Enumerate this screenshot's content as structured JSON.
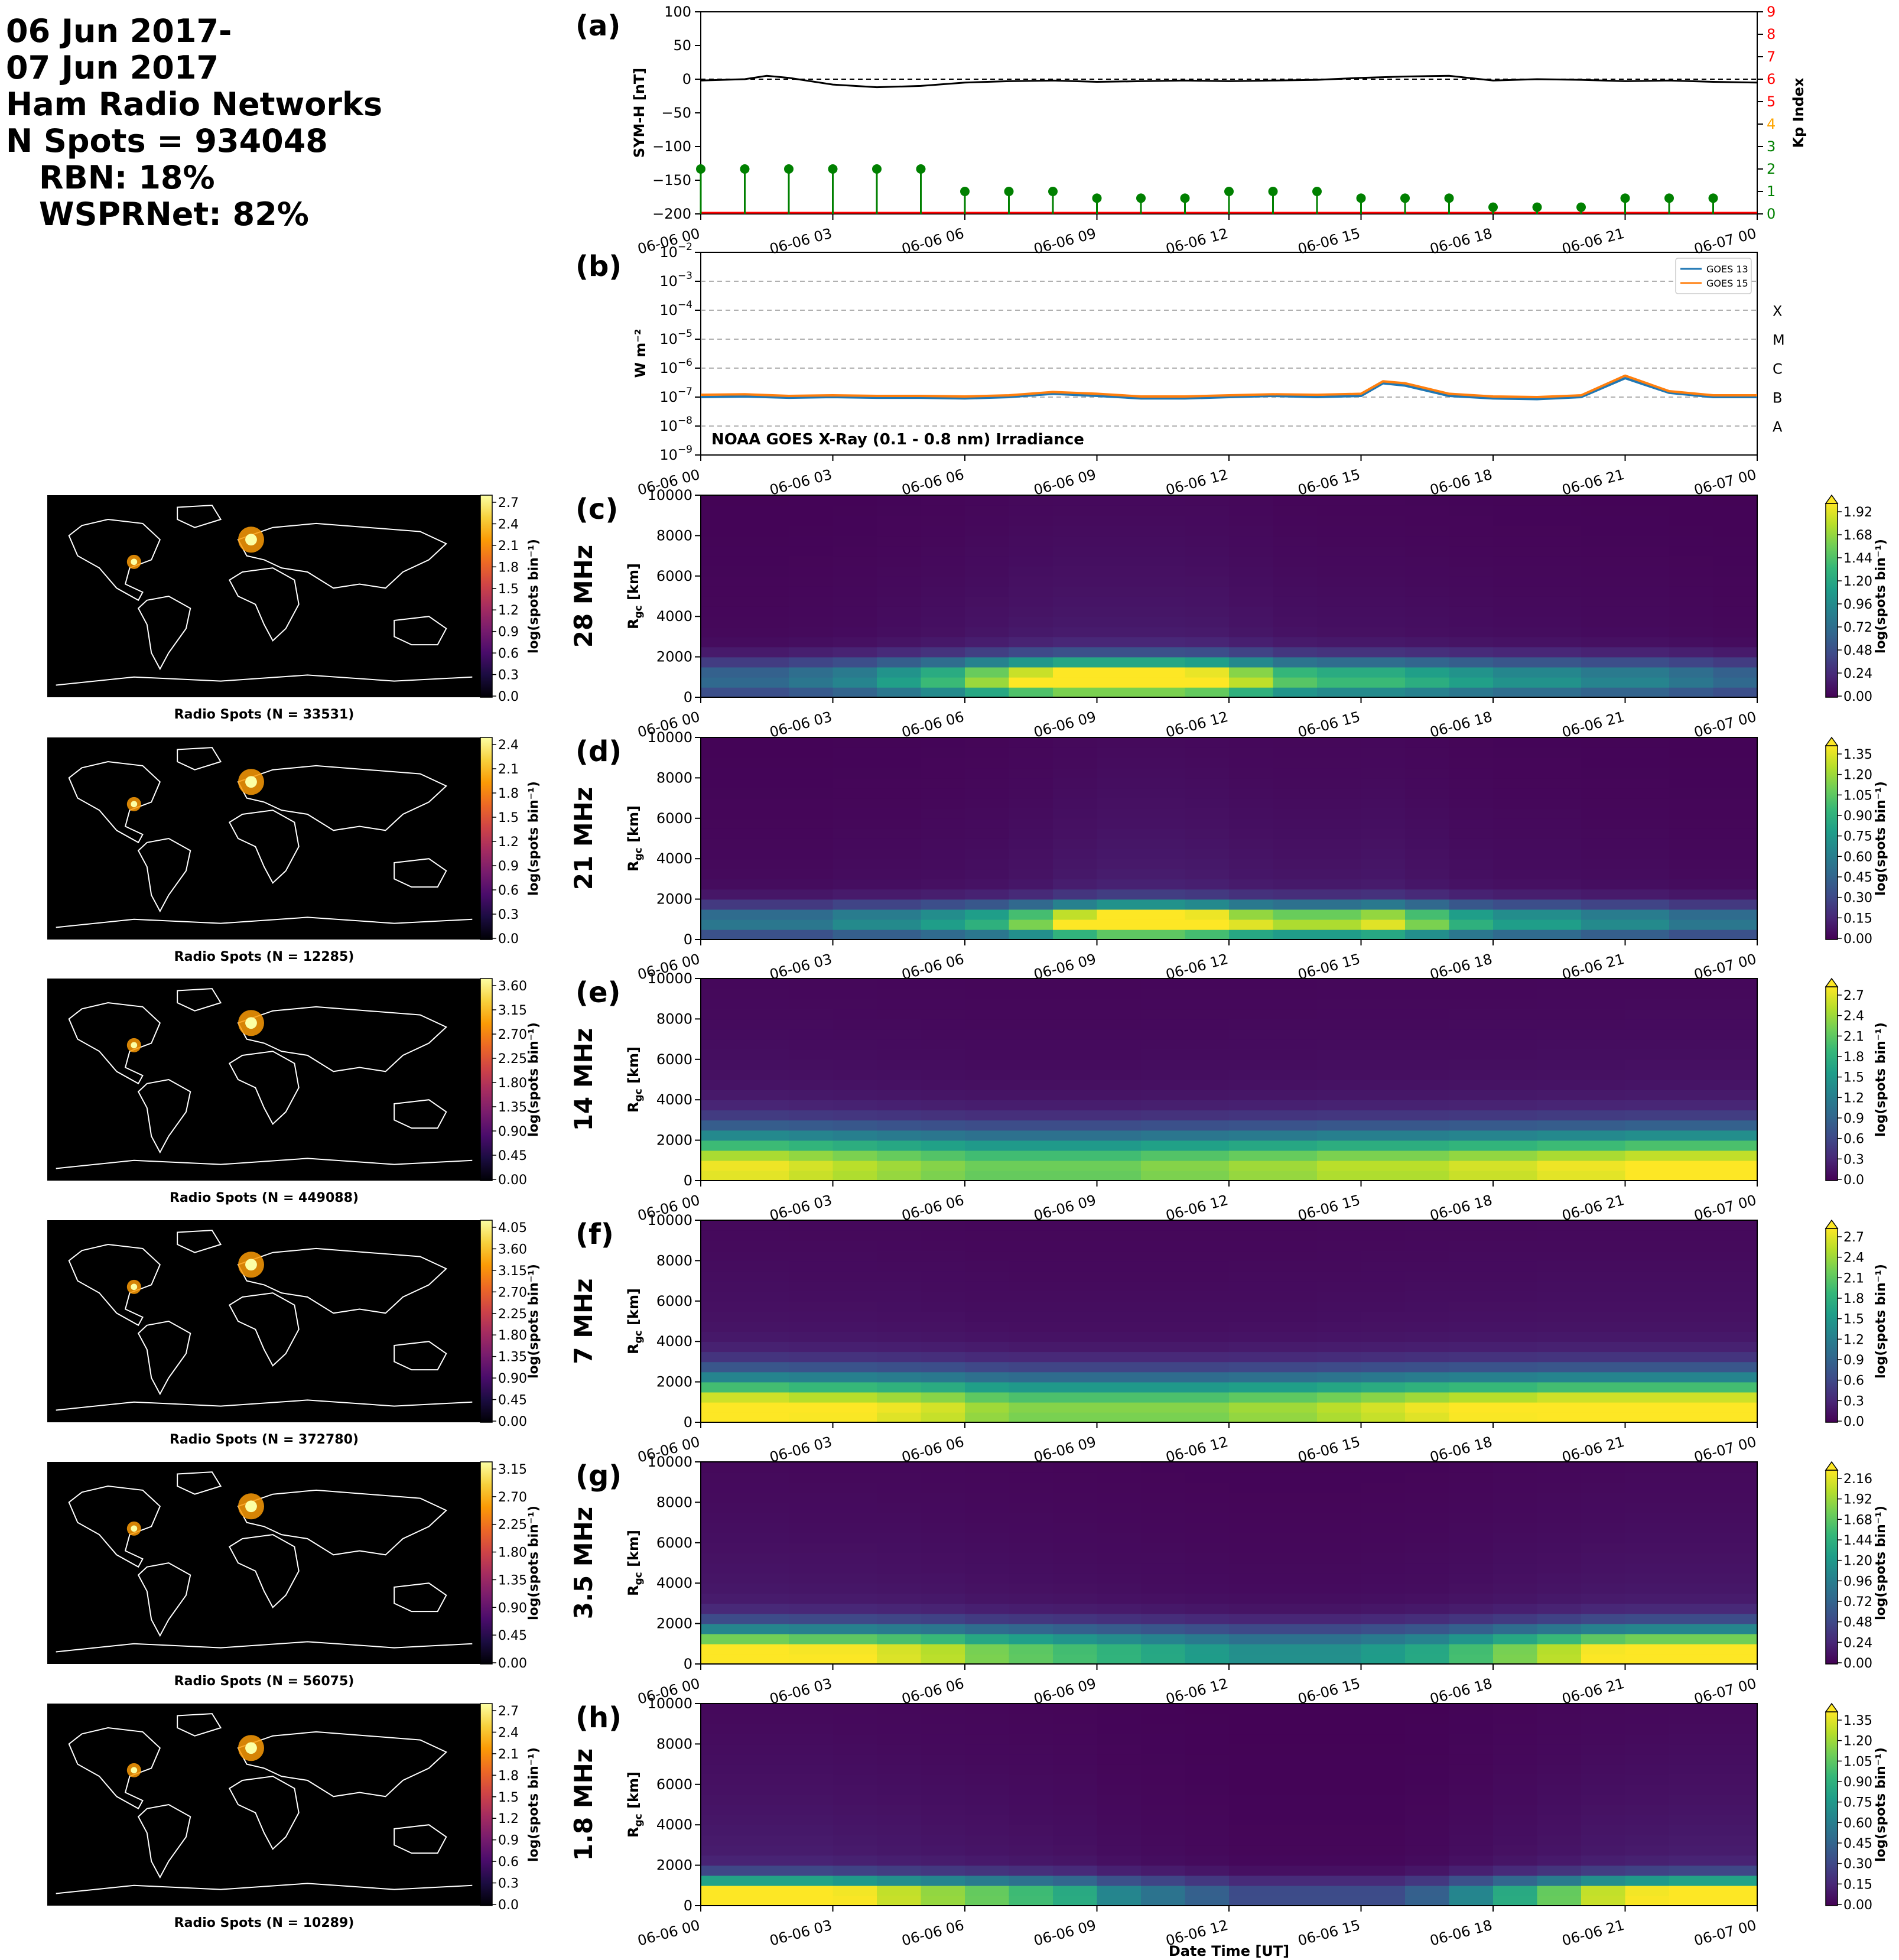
{
  "header": {
    "date_line_1": "06 Jun 2017-",
    "date_line_2": "07 Jun 2017",
    "networks": "Ham Radio Networks",
    "n_spots": "N Spots = 934048",
    "rbn": "RBN: 18%",
    "wsprnet": "WSPRNet: 82%"
  },
  "colors": {
    "sym_h": "#000000",
    "kp_stem": "#008000",
    "kp_low": "#008000",
    "kp_mid": "#ffa500",
    "kp_high": "#ff0000",
    "goes13": "#1f77b4",
    "goes15": "#ff7f0e",
    "map_bg": "#000000",
    "coast": "#ffffff"
  },
  "x_axis": {
    "ticks": [
      "06-06 00",
      "06-06 03",
      "06-06 06",
      "06-06 09",
      "06-06 12",
      "06-06 15",
      "06-06 18",
      "06-06 21",
      "06-07 00"
    ],
    "label": "Date Time [UT]"
  },
  "chart_data": [
    {
      "panel": "(a)",
      "type": "line",
      "ylabel": "SYM-H [nT]",
      "ylim": [
        -200,
        100
      ],
      "yticks": [
        "100",
        "50",
        "0",
        "−50",
        "−100",
        "−150",
        "−200"
      ],
      "x_hours": [
        0,
        1,
        1.5,
        2,
        3,
        4,
        5,
        6,
        7,
        8,
        9,
        10,
        11,
        12,
        13,
        14,
        15,
        16,
        17,
        18,
        19,
        20,
        21,
        22,
        23,
        24
      ],
      "series": [
        {
          "name": "SYM-H",
          "values": [
            -2,
            0,
            5,
            2,
            -8,
            -12,
            -10,
            -5,
            -3,
            -2,
            -4,
            -3,
            -2,
            -3,
            -2,
            -1,
            2,
            4,
            5,
            -2,
            0,
            -1,
            -3,
            -2,
            -4,
            -5
          ]
        }
      ],
      "secondary_axis": {
        "ylabel": "Kp Index",
        "ylim": [
          0,
          9
        ],
        "yticks": [
          "0",
          "1",
          "2",
          "3",
          "4",
          "5",
          "6",
          "7",
          "8",
          "9"
        ],
        "kp_x_hours": [
          0,
          1,
          2,
          3,
          4,
          5,
          6,
          7,
          8,
          9,
          10,
          11,
          12,
          13,
          14,
          15,
          16,
          17,
          18,
          19,
          20,
          21,
          22,
          23
        ],
        "kp_values": [
          2,
          2,
          2,
          2,
          2,
          2,
          1,
          1,
          1,
          0.7,
          0.7,
          0.7,
          1,
          1,
          1,
          0.7,
          0.7,
          0.7,
          0.3,
          0.3,
          0.3,
          0.7,
          0.7,
          0.7
        ]
      }
    },
    {
      "panel": "(b)",
      "type": "line",
      "ylabel": "W m⁻²",
      "log_scale": true,
      "ylim_exp": [
        -9,
        -2
      ],
      "ytick_exps": [
        -2,
        -3,
        -4,
        -5,
        -6,
        -7,
        -8,
        -9
      ],
      "flare_classes": [
        "X",
        "M",
        "C",
        "B",
        "A"
      ],
      "annotation": "NOAA GOES X-Ray (0.1 - 0.8 nm) Irradiance",
      "x_hours": [
        0,
        1,
        2,
        3,
        4,
        5,
        6,
        7,
        8,
        9,
        10,
        11,
        12,
        13,
        14,
        15,
        15.5,
        16,
        17,
        18,
        19,
        20,
        21,
        22,
        23,
        24
      ],
      "series": [
        {
          "name": "GOES 13",
          "values": [
            1e-07,
            1.05e-07,
            9.5e-08,
            1e-07,
            9.5e-08,
            9.5e-08,
            9e-08,
            1e-07,
            1.3e-07,
            1.1e-07,
            9e-08,
            9e-08,
            1e-07,
            1.1e-07,
            1e-07,
            1.1e-07,
            3e-07,
            2.5e-07,
            1.1e-07,
            9e-08,
            8.5e-08,
            1e-07,
            4.5e-07,
            1.4e-07,
            1e-07,
            1e-07
          ]
        },
        {
          "name": "GOES 15",
          "values": [
            1.2e-07,
            1.25e-07,
            1.1e-07,
            1.15e-07,
            1.1e-07,
            1.1e-07,
            1.05e-07,
            1.15e-07,
            1.5e-07,
            1.3e-07,
            1.05e-07,
            1.05e-07,
            1.15e-07,
            1.25e-07,
            1.2e-07,
            1.3e-07,
            3.5e-07,
            3e-07,
            1.3e-07,
            1.05e-07,
            1e-07,
            1.15e-07,
            5.5e-07,
            1.6e-07,
            1.15e-07,
            1.15e-07
          ]
        }
      ]
    },
    {
      "panel": "(c)",
      "type": "heatmap",
      "band": "28 MHz",
      "map_caption": "Radio Spots (N = 33531)",
      "ylabel": "R_gc [km]",
      "ylim": [
        0,
        10000
      ],
      "yticks": [
        "0",
        "2000",
        "4000",
        "6000",
        "8000",
        "10000"
      ],
      "map_cbar_ticks": [
        "0.0",
        "0.3",
        "0.6",
        "0.9",
        "1.2",
        "1.5",
        "1.8",
        "2.1",
        "2.4",
        "2.7"
      ],
      "cbar_ticks": [
        "0.00",
        "0.24",
        "0.48",
        "0.72",
        "0.96",
        "1.20",
        "1.44",
        "1.68",
        "1.92"
      ],
      "cbar_label": "log(spots bin⁻¹)",
      "intensity_by_hour": [
        0.6,
        0.6,
        0.7,
        0.8,
        1.0,
        1.2,
        1.5,
        1.8,
        2.0,
        2.0,
        2.0,
        1.9,
        1.6,
        1.3,
        1.2,
        1.2,
        1.1,
        1.0,
        0.9,
        0.9,
        0.8,
        0.8,
        0.7,
        0.6
      ],
      "peak_km": 900,
      "spread_km": 700
    },
    {
      "panel": "(d)",
      "type": "heatmap",
      "band": "21 MHz",
      "map_caption": "Radio Spots (N = 12285)",
      "ylabel": "R_gc [km]",
      "ylim": [
        0,
        10000
      ],
      "yticks": [
        "0",
        "2000",
        "4000",
        "6000",
        "8000",
        "10000"
      ],
      "map_cbar_ticks": [
        "0.0",
        "0.3",
        "0.6",
        "0.9",
        "1.2",
        "1.5",
        "1.8",
        "2.1",
        "2.4"
      ],
      "cbar_ticks": [
        "0.00",
        "0.15",
        "0.30",
        "0.45",
        "0.60",
        "0.75",
        "0.90",
        "1.05",
        "1.20",
        "1.35"
      ],
      "cbar_label": "log(spots bin⁻¹)",
      "intensity_by_hour": [
        0.5,
        0.5,
        0.5,
        0.6,
        0.6,
        0.7,
        0.8,
        1.0,
        1.3,
        1.5,
        1.5,
        1.4,
        1.2,
        1.1,
        1.1,
        1.2,
        1.0,
        0.8,
        0.7,
        0.7,
        0.6,
        0.6,
        0.5,
        0.5
      ],
      "peak_km": 900,
      "spread_km": 600
    },
    {
      "panel": "(e)",
      "type": "heatmap",
      "band": "14 MHz",
      "map_caption": "Radio Spots (N = 449088)",
      "ylabel": "R_gc [km]",
      "ylim": [
        0,
        10000
      ],
      "yticks": [
        "0",
        "2000",
        "4000",
        "6000",
        "8000",
        "10000"
      ],
      "map_cbar_ticks": [
        "0.00",
        "0.45",
        "0.90",
        "1.35",
        "1.80",
        "2.25",
        "2.70",
        "3.15",
        "3.60"
      ],
      "cbar_ticks": [
        "0.0",
        "0.3",
        "0.6",
        "0.9",
        "1.2",
        "1.5",
        "1.8",
        "2.1",
        "2.4",
        "2.7"
      ],
      "cbar_label": "log(spots bin⁻¹)",
      "intensity_by_hour": [
        2.4,
        2.4,
        2.3,
        2.2,
        2.1,
        2.0,
        1.9,
        1.9,
        1.9,
        1.9,
        2.0,
        2.0,
        2.1,
        2.1,
        2.2,
        2.2,
        2.2,
        2.3,
        2.3,
        2.4,
        2.4,
        2.5,
        2.5,
        2.5
      ],
      "peak_km": 600,
      "spread_km": 1300
    },
    {
      "panel": "(f)",
      "type": "heatmap",
      "band": "7 MHz",
      "map_caption": "Radio Spots (N = 372780)",
      "ylabel": "R_gc [km]",
      "ylim": [
        0,
        10000
      ],
      "yticks": [
        "0",
        "2000",
        "4000",
        "6000",
        "8000",
        "10000"
      ],
      "map_cbar_ticks": [
        "0.00",
        "0.45",
        "0.90",
        "1.35",
        "1.80",
        "2.25",
        "2.70",
        "3.15",
        "3.60",
        "4.05"
      ],
      "cbar_ticks": [
        "0.0",
        "0.3",
        "0.6",
        "0.9",
        "1.2",
        "1.5",
        "1.8",
        "2.1",
        "2.4",
        "2.7"
      ],
      "cbar_label": "log(spots bin⁻¹)",
      "intensity_by_hour": [
        2.6,
        2.6,
        2.5,
        2.5,
        2.4,
        2.3,
        2.1,
        2.0,
        2.0,
        2.0,
        2.0,
        2.0,
        2.1,
        2.1,
        2.2,
        2.3,
        2.4,
        2.5,
        2.5,
        2.6,
        2.6,
        2.6,
        2.6,
        2.6
      ],
      "peak_km": 600,
      "spread_km": 1200
    },
    {
      "panel": "(g)",
      "type": "heatmap",
      "band": "3.5 MHz",
      "map_caption": "Radio Spots (N = 56075)",
      "ylabel": "R_gc [km]",
      "ylim": [
        0,
        10000
      ],
      "yticks": [
        "0",
        "2000",
        "4000",
        "6000",
        "8000",
        "10000"
      ],
      "map_cbar_ticks": [
        "0.00",
        "0.45",
        "0.90",
        "1.35",
        "1.80",
        "2.25",
        "2.70",
        "3.15"
      ],
      "cbar_ticks": [
        "0.00",
        "0.24",
        "0.48",
        "0.72",
        "0.96",
        "1.20",
        "1.44",
        "1.68",
        "1.92",
        "2.16"
      ],
      "cbar_label": "log(spots bin⁻¹)",
      "intensity_by_hour": [
        2.1,
        2.1,
        2.0,
        2.0,
        1.9,
        1.8,
        1.6,
        1.5,
        1.4,
        1.3,
        1.2,
        1.1,
        1.0,
        1.0,
        1.0,
        1.1,
        1.2,
        1.4,
        1.6,
        1.8,
        2.0,
        2.1,
        2.1,
        2.1
      ],
      "peak_km": 500,
      "spread_km": 900
    },
    {
      "panel": "(h)",
      "type": "heatmap",
      "band": "1.8 MHz",
      "map_caption": "Radio Spots (N = 10289)",
      "ylabel": "R_gc [km]",
      "ylim": [
        0,
        10000
      ],
      "yticks": [
        "0",
        "2000",
        "4000",
        "6000",
        "8000",
        "10000"
      ],
      "map_cbar_ticks": [
        "0.0",
        "0.3",
        "0.6",
        "0.9",
        "1.2",
        "1.5",
        "1.8",
        "2.1",
        "2.4",
        "2.7"
      ],
      "cbar_ticks": [
        "0.00",
        "0.15",
        "0.30",
        "0.45",
        "0.60",
        "0.75",
        "0.90",
        "1.05",
        "1.20",
        "1.35"
      ],
      "cbar_label": "log(spots bin⁻¹)",
      "intensity_by_hour": [
        1.4,
        1.4,
        1.4,
        1.3,
        1.2,
        1.1,
        1.0,
        0.9,
        0.8,
        0.6,
        0.5,
        0.4,
        0.3,
        0.3,
        0.3,
        0.3,
        0.4,
        0.6,
        0.8,
        1.0,
        1.2,
        1.3,
        1.4,
        1.4
      ],
      "peak_km": 500,
      "spread_km": 600
    }
  ]
}
